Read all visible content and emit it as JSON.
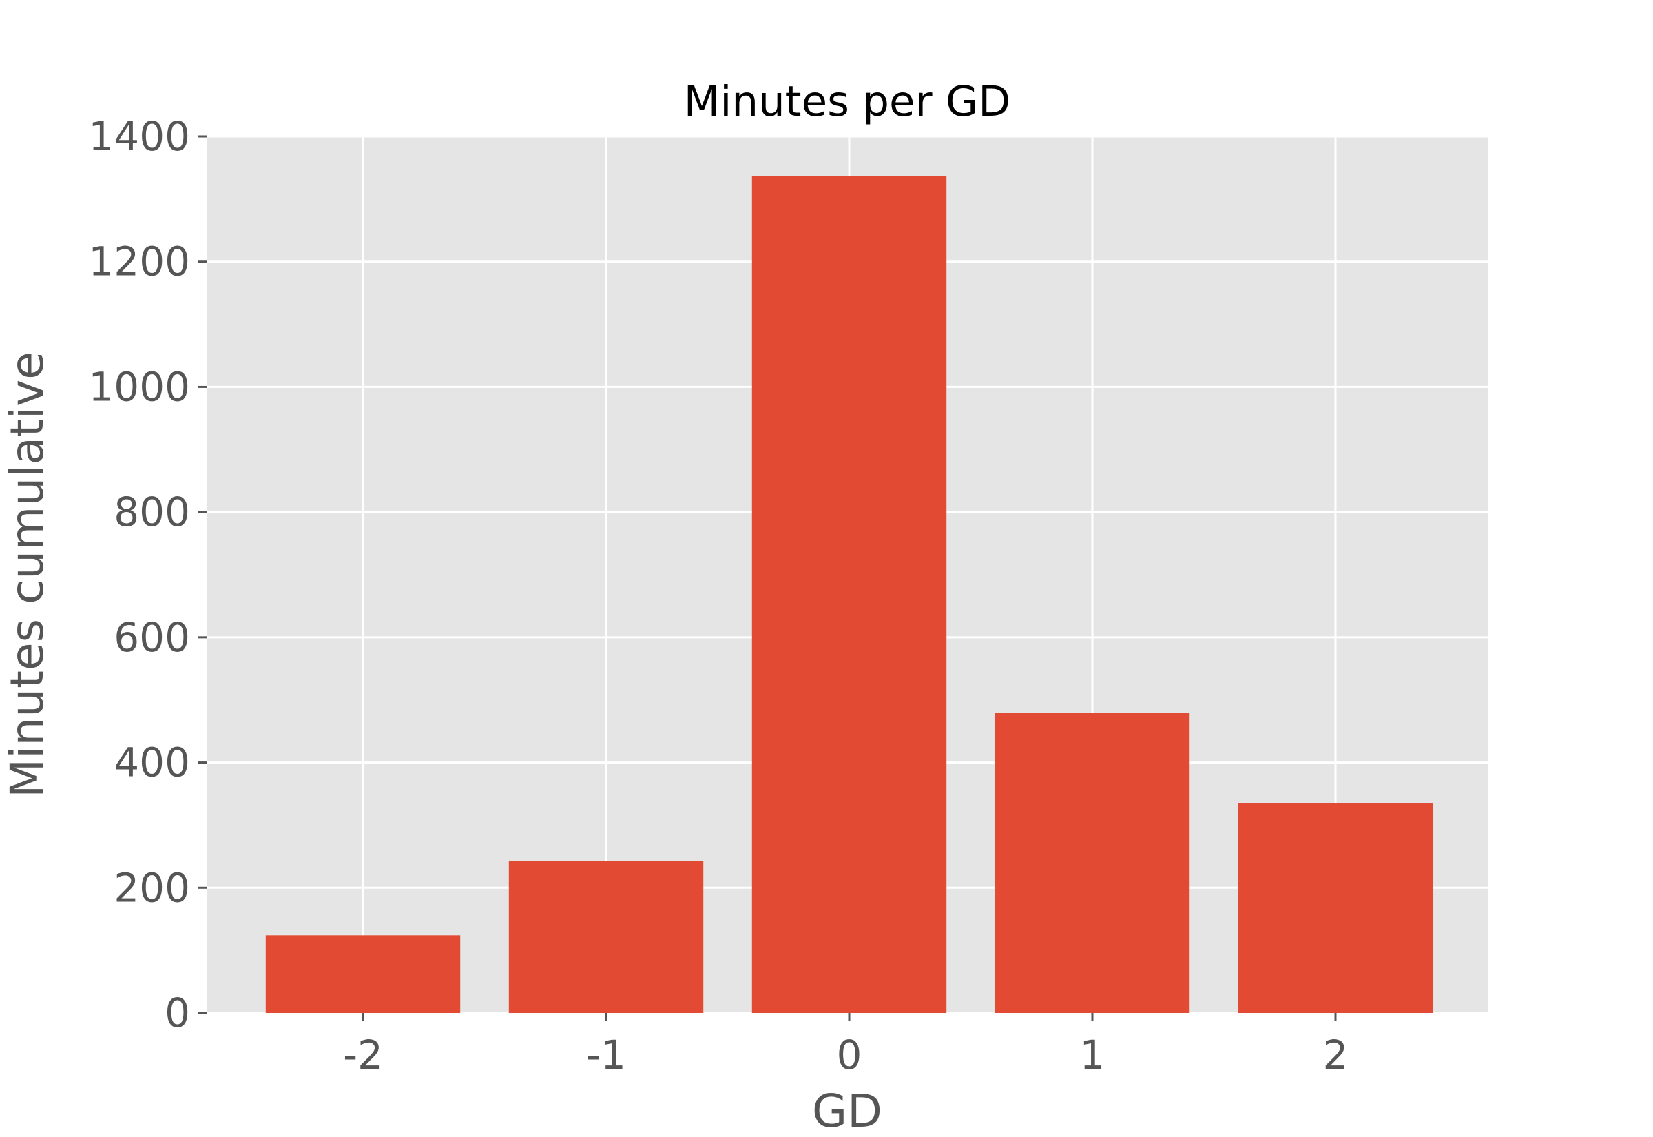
{
  "chart_data": {
    "type": "bar",
    "title": "Minutes per GD",
    "xlabel": "GD",
    "ylabel": "Minutes cumulative",
    "categories": [
      "-2",
      "-1",
      "0",
      "1",
      "2"
    ],
    "values": [
      124,
      243,
      1337,
      479,
      335
    ],
    "ylim": [
      0,
      1400
    ],
    "yticks": [
      0,
      200,
      400,
      600,
      800,
      1000,
      1200,
      1400
    ],
    "ytick_labels": [
      "0",
      "200",
      "400",
      "600",
      "800",
      "1000",
      "1200",
      "1400"
    ],
    "grid": true,
    "bar_color": "#E24A33",
    "plot_background": "#E5E5E5",
    "grid_color": "#FFFFFF"
  }
}
